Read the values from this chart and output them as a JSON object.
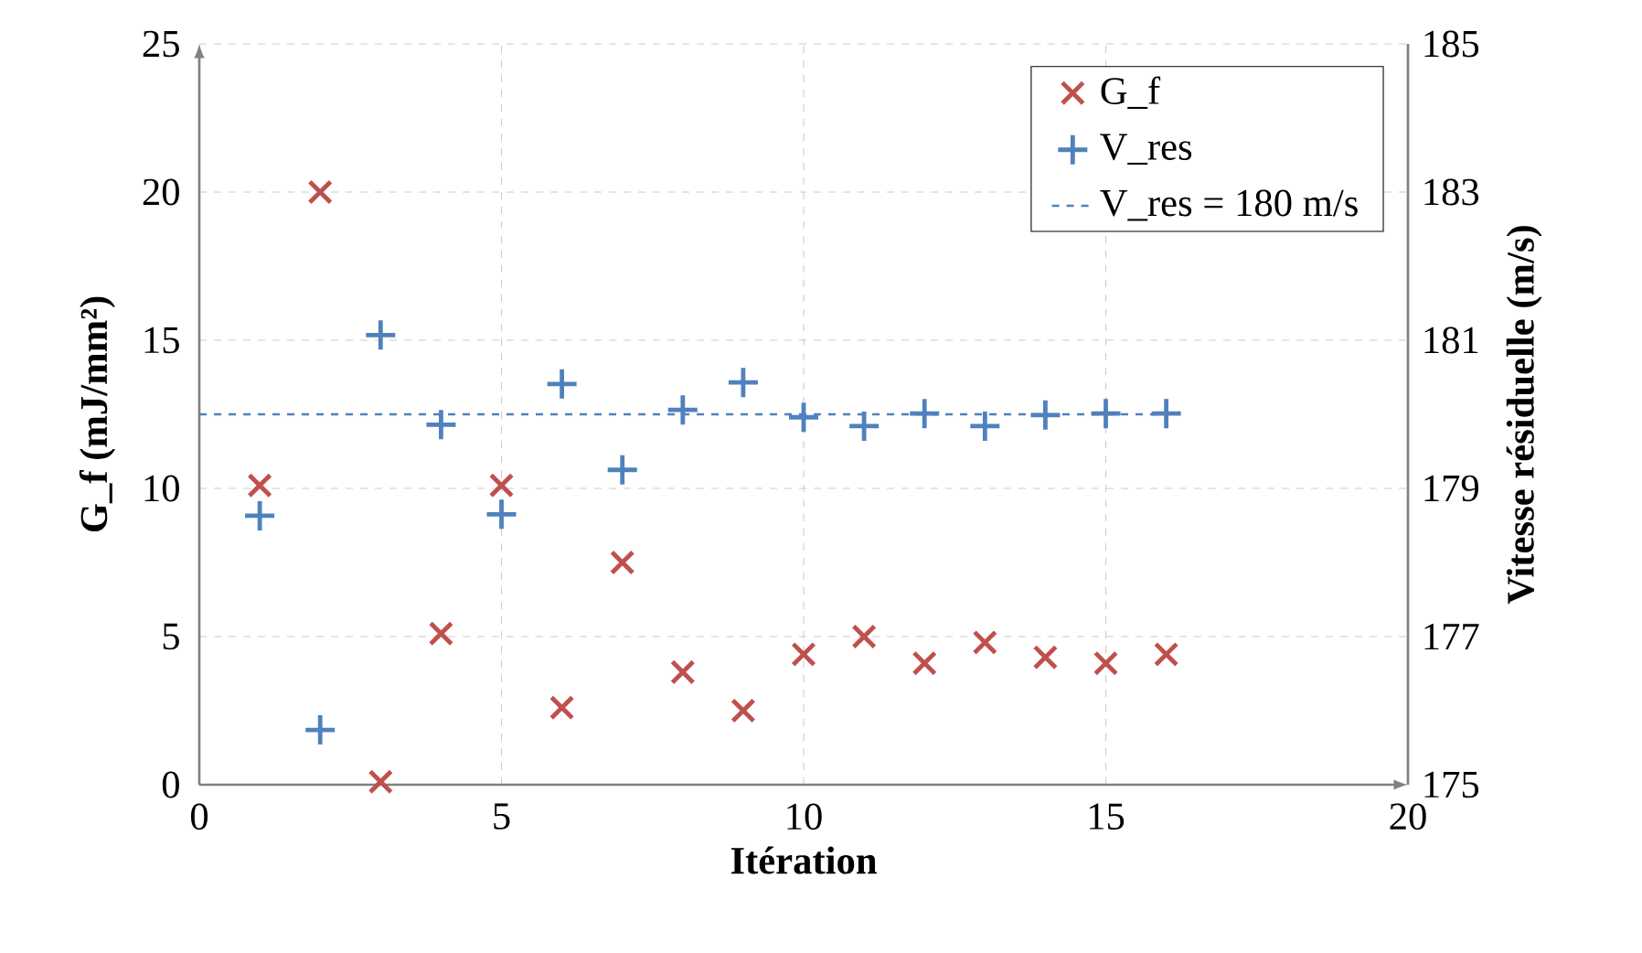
{
  "chart_data": {
    "type": "scatter",
    "xlabel": "Itération",
    "ylabel": "G_f (mJ/mm²)",
    "y2label": "Vitesse résiduelle (m/s)",
    "xlim": [
      0,
      20
    ],
    "xticks": [
      0,
      5,
      10,
      15,
      20
    ],
    "ylim": [
      0,
      25
    ],
    "yticks": [
      0,
      5,
      10,
      15,
      20,
      25
    ],
    "y2lim": [
      175,
      185
    ],
    "y2ticks": [
      175,
      177,
      179,
      181,
      183,
      185
    ],
    "grid": true,
    "legend": "top right",
    "series": [
      {
        "name": "G_f",
        "color": "#c0504d",
        "marker": "cross",
        "x": [
          1,
          2,
          3,
          4,
          5,
          6,
          7,
          8,
          9,
          10,
          11,
          12,
          13,
          14,
          15,
          16
        ],
        "values": [
          10.1,
          20,
          0.1,
          5.1,
          10.1,
          2.6,
          7.5,
          3.8,
          2.5,
          4.4,
          5.0,
          4.1,
          4.8,
          4.3,
          4.1,
          4.4
        ]
      },
      {
        "name": "V_res",
        "color": "#4f81bd",
        "marker": "plus",
        "axis": "y2",
        "x": [
          1,
          2,
          3,
          4,
          5,
          6,
          7,
          8,
          9,
          10,
          11,
          12,
          13,
          14,
          15,
          16
        ],
        "values": [
          178.63,
          175.74,
          181.07,
          179.86,
          178.65,
          180.41,
          179.25,
          180.06,
          180.43,
          179.96,
          179.84,
          180.01,
          179.84,
          179.99,
          180.01,
          180.01
        ]
      }
    ],
    "ref_lines": [
      {
        "axis": "y2",
        "value": 180,
        "label": "V_res = 180 m/s",
        "color": "#4f81bd",
        "line_style": "dashed"
      }
    ]
  }
}
